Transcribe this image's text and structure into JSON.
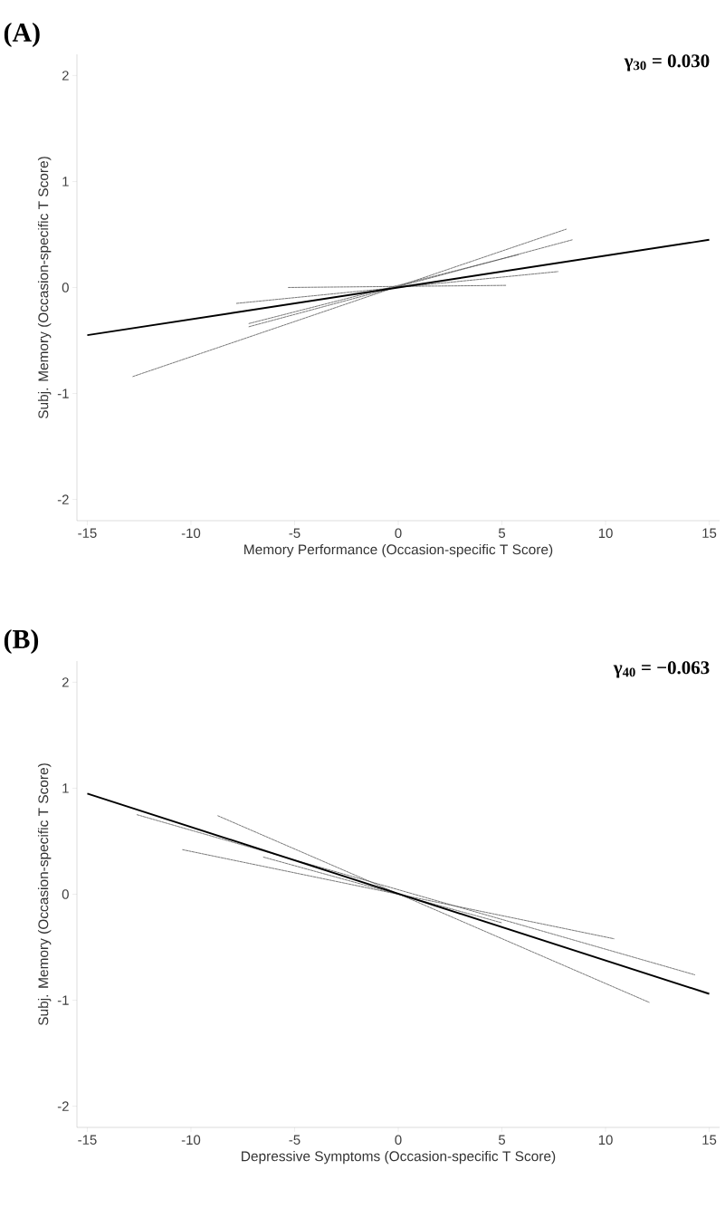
{
  "chart_data": [
    {
      "type": "line",
      "title": "(A)",
      "xlabel": "Memory Performance (Occasion-specific T Score)",
      "ylabel": "Subj. Memory (Occasion-specific T Score)",
      "annotations": [
        "γ$_{30}$ = 0.030"
      ],
      "xlim": [
        -15.5,
        15.5
      ],
      "ylim": [
        -2.2,
        2.2
      ],
      "xticks": [
        -15,
        -10,
        -5,
        0,
        5,
        10,
        15
      ],
      "yticks": [
        -2,
        -1,
        0,
        1,
        2
      ],
      "series": [
        {
          "x": [
            -12.8,
            8.1
          ],
          "values": [
            -0.84,
            0.55
          ],
          "color": "#555555",
          "line_style": "dashed"
        },
        {
          "x": [
            -7.2,
            8.4
          ],
          "values": [
            -0.37,
            0.45
          ],
          "color": "#555555",
          "line_style": "dashed"
        },
        {
          "x": [
            -7.2,
            5.8
          ],
          "values": [
            -0.34,
            0.31
          ],
          "color": "#555555",
          "line_style": "dashed"
        },
        {
          "x": [
            -7.8,
            7.7
          ],
          "values": [
            -0.15,
            0.15
          ],
          "color": "#555555",
          "line_style": "dashed"
        },
        {
          "x": [
            -5.3,
            5.2
          ],
          "values": [
            0.0,
            0.02
          ],
          "color": "#555555",
          "line_style": "dashed"
        },
        {
          "x": [
            -15,
            15
          ],
          "values": [
            -0.45,
            0.45
          ],
          "color": "#000000",
          "line_style": "solid"
        }
      ]
    },
    {
      "type": "line",
      "title": "(B)",
      "xlabel": "Depressive Symptoms (Occasion-specific T Score)",
      "ylabel": "Subj. Memory (Occasion-specific T Score)",
      "annotations": [
        "γ$_{40}$ = −0.063"
      ],
      "xlim": [
        -15.5,
        15.5
      ],
      "ylim": [
        -2.2,
        2.2
      ],
      "xticks": [
        -15,
        -10,
        -5,
        0,
        5,
        10,
        15
      ],
      "yticks": [
        -2,
        -1,
        0,
        1,
        2
      ],
      "series": [
        {
          "x": [
            -8.7,
            12.1
          ],
          "values": [
            0.74,
            -1.02
          ],
          "color": "#555555",
          "line_style": "dashed"
        },
        {
          "x": [
            -10.4,
            10.4
          ],
          "values": [
            0.42,
            -0.42
          ],
          "color": "#555555",
          "line_style": "dashed"
        },
        {
          "x": [
            -12.6,
            14.3
          ],
          "values": [
            0.75,
            -0.76
          ],
          "color": "#555555",
          "line_style": "dashed"
        },
        {
          "x": [
            -6.5,
            5.0
          ],
          "values": [
            0.35,
            -0.27
          ],
          "color": "#555555",
          "line_style": "dashed"
        },
        {
          "x": [
            -15,
            15
          ],
          "values": [
            0.95,
            -0.94
          ],
          "color": "#000000",
          "line_style": "solid"
        }
      ]
    }
  ]
}
